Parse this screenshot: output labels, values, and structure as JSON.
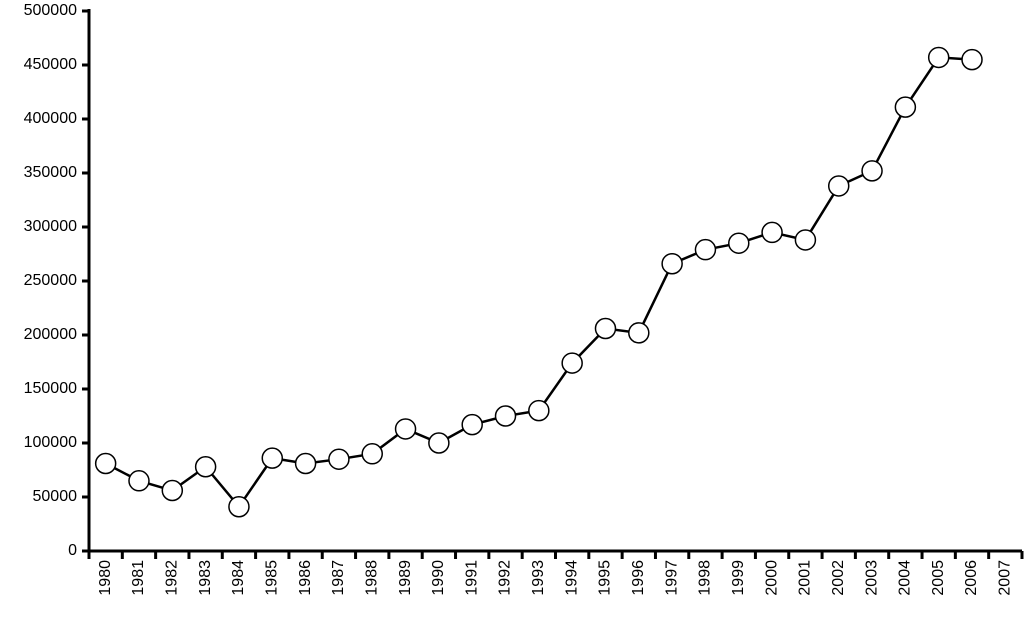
{
  "chart_data": {
    "type": "line",
    "categories": [
      "1980",
      "1981",
      "1982",
      "1983",
      "1984",
      "1985",
      "1986",
      "1987",
      "1988",
      "1989",
      "1990",
      "1991",
      "1992",
      "1993",
      "1994",
      "1995",
      "1996",
      "1997",
      "1998",
      "1999",
      "2000",
      "2001",
      "2002",
      "2003",
      "2004",
      "2005",
      "2006",
      "2007"
    ],
    "values": [
      81000,
      65000,
      56000,
      78000,
      41000,
      86000,
      81000,
      85000,
      90000,
      113000,
      100000,
      117000,
      125000,
      130000,
      174000,
      206000,
      202000,
      266000,
      279000,
      285000,
      295000,
      288000,
      338000,
      352000,
      411000,
      457000,
      455000,
      null
    ],
    "color": "#000000",
    "marker_fill": "#ffffff",
    "ylim": [
      0,
      500000
    ],
    "yticks": [
      0,
      50000,
      100000,
      150000,
      200000,
      250000,
      300000,
      350000,
      400000,
      450000,
      500000
    ],
    "grid": false
  }
}
